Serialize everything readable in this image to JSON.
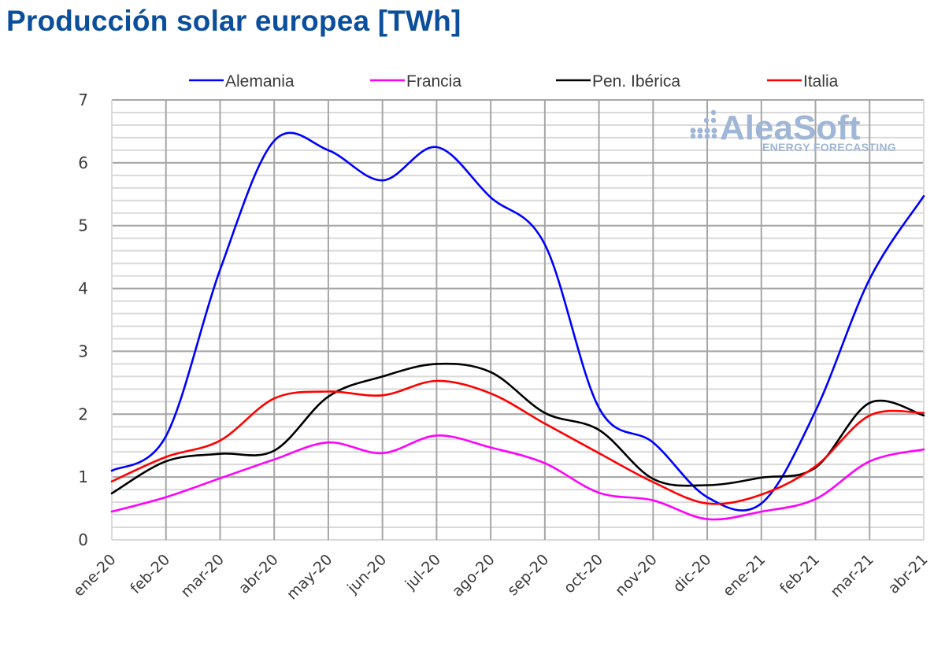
{
  "page": {
    "title": "Producción solar europea [TWh]",
    "watermark": {
      "brand": "AleaSoft",
      "tagline": "ENERGY FORECASTING"
    }
  },
  "chart_data": {
    "type": "line",
    "title": "Producción solar europea [TWh]",
    "xlabel": "",
    "ylabel": "",
    "ylim": [
      0,
      7
    ],
    "yticks": [
      0,
      1,
      2,
      3,
      4,
      5,
      6,
      7
    ],
    "minor_grid_step": 0.2,
    "grid": true,
    "smoothed": true,
    "legend_position": "top",
    "categories": [
      "ene-20",
      "feb-20",
      "mar-20",
      "abr-20",
      "may-20",
      "jun-20",
      "jul-20",
      "ago-20",
      "sep-20",
      "oct-20",
      "nov-20",
      "dic-20",
      "ene-21",
      "feb-21",
      "mar-21",
      "abr-21"
    ],
    "series": [
      {
        "name": "Alemania",
        "color": "#0000ff",
        "values": [
          1.1,
          1.65,
          4.3,
          6.35,
          6.2,
          5.72,
          6.25,
          5.45,
          4.7,
          2.1,
          1.55,
          0.68,
          0.58,
          2.05,
          4.15,
          5.47
        ]
      },
      {
        "name": "Francia",
        "color": "#ff00ff",
        "values": [
          0.45,
          0.68,
          0.98,
          1.28,
          1.55,
          1.38,
          1.66,
          1.47,
          1.22,
          0.75,
          0.63,
          0.33,
          0.45,
          0.65,
          1.25,
          1.44
        ]
      },
      {
        "name": "Pen. Ibérica",
        "color": "#000000",
        "values": [
          0.74,
          1.25,
          1.37,
          1.42,
          2.28,
          2.6,
          2.8,
          2.67,
          2.02,
          1.75,
          0.97,
          0.87,
          0.99,
          1.15,
          2.18,
          1.98
        ]
      },
      {
        "name": "Italia",
        "color": "#ff0000",
        "values": [
          0.93,
          1.32,
          1.58,
          2.25,
          2.36,
          2.3,
          2.53,
          2.33,
          1.85,
          1.38,
          0.92,
          0.58,
          0.72,
          1.17,
          1.98,
          2.02
        ]
      }
    ]
  }
}
